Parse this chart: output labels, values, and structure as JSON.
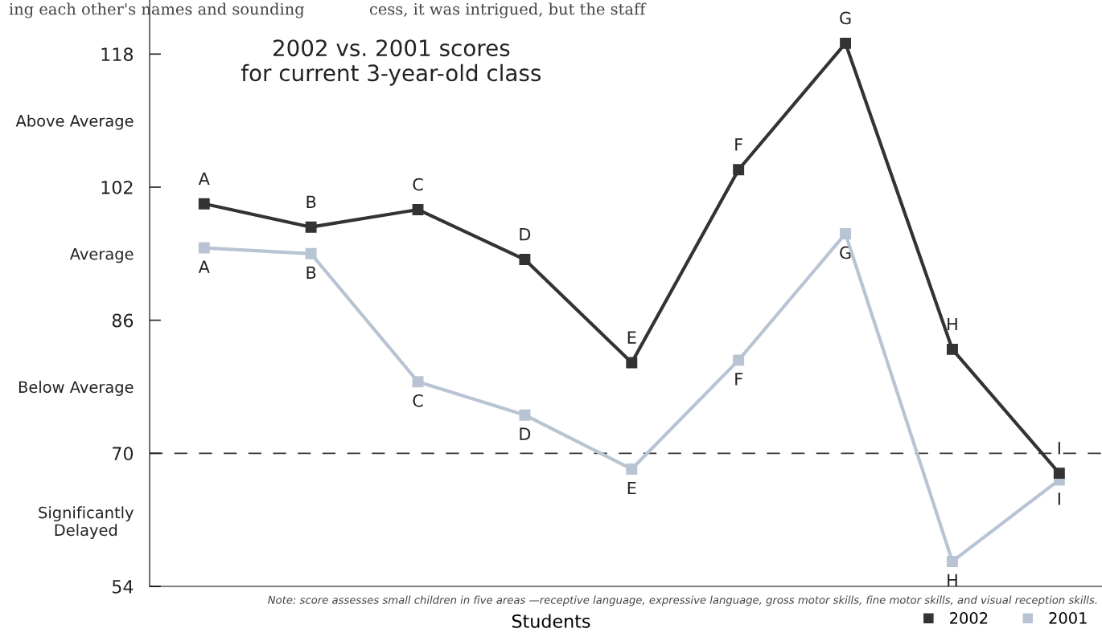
{
  "chart_data": {
    "type": "line",
    "title": "2002 vs. 2001 scores\nfor current 3-year-old class",
    "xlabel": "Students",
    "categories": [
      "A",
      "B",
      "C",
      "D",
      "E",
      "F",
      "G",
      "H",
      "I"
    ],
    "series": [
      {
        "name": "2002",
        "color": "#333333",
        "values": [
          100.0,
          97.2,
          99.3,
          93.3,
          80.9,
          104.1,
          119.3,
          82.5,
          67.6
        ]
      },
      {
        "name": "2001",
        "color": "#b8c4d4",
        "values": [
          94.7,
          94.0,
          78.6,
          74.6,
          68.1,
          81.2,
          96.4,
          57.0,
          66.8
        ]
      }
    ],
    "ylim": [
      54,
      124.5
    ],
    "yticks": [
      54,
      70,
      86,
      102,
      118,
      {
        "value": 110,
        "label": "Above Average"
      },
      {
        "value": 94,
        "label": "Average"
      },
      {
        "value": 78,
        "label": "Below Average"
      },
      {
        "value": 62,
        "label": "Significantly\nDelayed"
      }
    ],
    "ref_lines": [
      {
        "axis": "y",
        "value": 70,
        "color": "#333333",
        "line_style": "dashed"
      }
    ],
    "annotations": [
      "Note: score assesses small children in five areas —receptive language, expressive language, gross motor skills, fine motor skills, and visual reception skills.",
      "ing each other's names and sounding",
      "cess, it was intrigued, but the staff"
    ],
    "tick_labels": "y",
    "grid": false,
    "legend": "bottom right",
    "marker": "square",
    "line_style": "solid"
  }
}
